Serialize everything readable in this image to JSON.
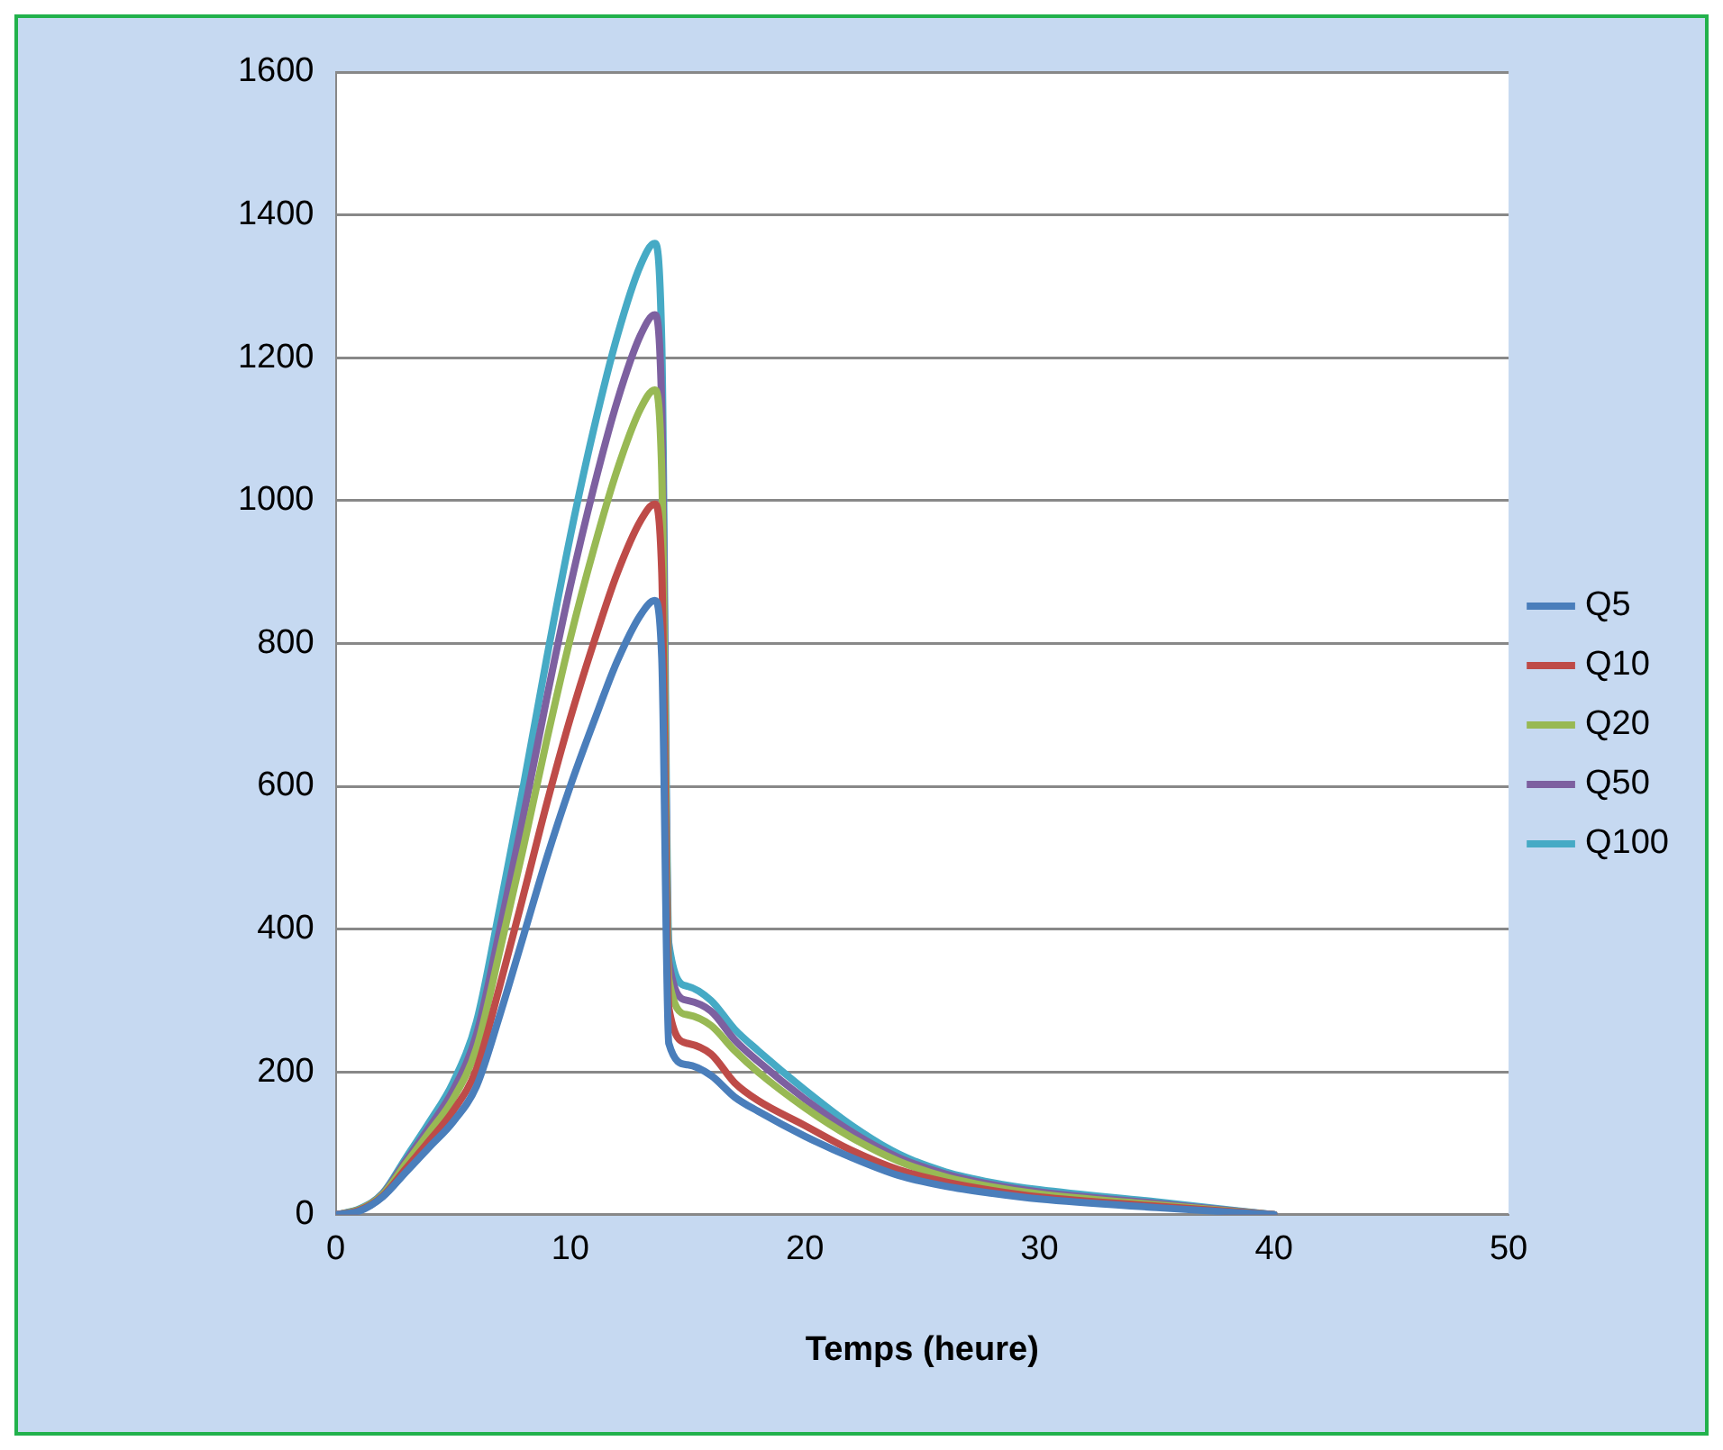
{
  "chart_data": {
    "type": "line",
    "xlabel": "Temps (heure)",
    "x": [
      0,
      1,
      2,
      3,
      4,
      5,
      6,
      7,
      8,
      9,
      10,
      11,
      12,
      13,
      13.6,
      13.9,
      14.2,
      15,
      16,
      17,
      18,
      20,
      22,
      24,
      26,
      28,
      30,
      35,
      40
    ],
    "series": [
      {
        "name": "Q5",
        "color": "#4a7ebb",
        "values": [
          0,
          5,
          25,
          60,
          95,
          130,
          180,
          280,
          390,
          500,
          600,
          690,
          775,
          840,
          860,
          780,
          240,
          210,
          195,
          165,
          145,
          110,
          80,
          55,
          40,
          30,
          22,
          10,
          0
        ]
      },
      {
        "name": "Q10",
        "color": "#be4b48",
        "values": [
          0,
          6,
          26,
          65,
          104,
          145,
          204,
          321,
          447,
          576,
          695,
          801,
          898,
          972,
          995,
          900,
          290,
          240,
          225,
          185,
          160,
          125,
          90,
          63,
          46,
          34,
          25,
          12,
          0
        ]
      },
      {
        "name": "Q20",
        "color": "#98b954",
        "values": [
          0,
          7,
          28,
          72,
          116,
          162,
          233,
          370,
          514,
          665,
          807,
          932,
          1043,
          1129,
          1155,
          1040,
          330,
          280,
          265,
          230,
          200,
          150,
          108,
          75,
          53,
          39,
          29,
          14,
          0
        ]
      },
      {
        "name": "Q50",
        "color": "#7d60a0",
        "values": [
          0,
          7,
          29,
          76,
          123,
          174,
          252,
          400,
          558,
          724,
          880,
          1018,
          1139,
          1232,
          1260,
          1130,
          355,
          300,
          285,
          245,
          215,
          162,
          116,
          80,
          57,
          42,
          32,
          16,
          0
        ]
      },
      {
        "name": "Q100",
        "color": "#46aac5",
        "values": [
          0,
          8,
          30,
          80,
          130,
          185,
          270,
          430,
          600,
          780,
          950,
          1100,
          1230,
          1330,
          1360,
          1220,
          380,
          320,
          300,
          260,
          230,
          175,
          125,
          85,
          60,
          45,
          35,
          18,
          0
        ]
      }
    ],
    "xlim": [
      0,
      50
    ],
    "xticks": [
      0,
      10,
      20,
      30,
      40,
      50
    ],
    "ylim": [
      0,
      1600
    ],
    "yticks": [
      0,
      200,
      400,
      600,
      800,
      1000,
      1200,
      1400,
      1600
    ],
    "grid": "y",
    "legend": "right",
    "marker": "none",
    "line_style": "solid"
  }
}
